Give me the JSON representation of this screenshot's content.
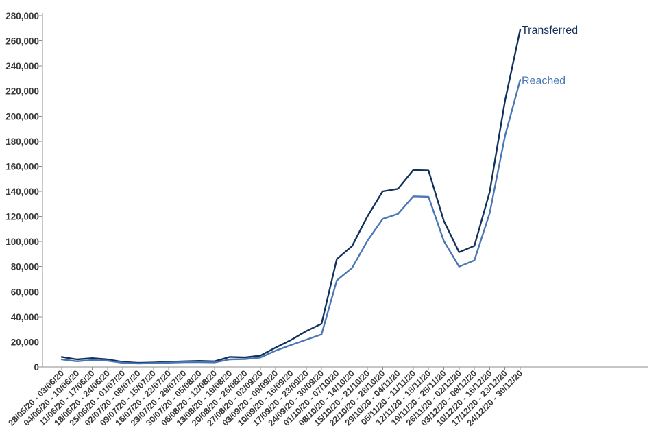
{
  "chart_data": {
    "type": "line",
    "title": "",
    "xlabel": "",
    "ylabel": "",
    "ylim": [
      0,
      280000
    ],
    "yticks": [
      0,
      20000,
      40000,
      60000,
      80000,
      100000,
      120000,
      140000,
      160000,
      180000,
      200000,
      220000,
      240000,
      260000,
      280000
    ],
    "ytick_labels": [
      "0",
      "20,000",
      "40,000",
      "60,000",
      "80,000",
      "100,000",
      "120,000",
      "140,000",
      "160,000",
      "180,000",
      "200,000",
      "220,000",
      "240,000",
      "260,000",
      "280,000"
    ],
    "grid": false,
    "legend": "end-of-line labels",
    "categories": [
      "28/05/20 - 03/06/20",
      "04/06/20 - 10/06/20",
      "11/06/20 - 17/06/20",
      "18/06/20 - 24/06/20",
      "25/06/20 - 01/07/20",
      "02/07/20 - 08/07/20",
      "09/07/20 - 15/07/20",
      "16/07/20 - 22/07/20",
      "23/07/20 - 29/07/20",
      "30/07/20 - 05/08/20",
      "06/08/20 - 12/08/20",
      "13/08/20 - 19/08/20",
      "20/08/20 - 26/08/20",
      "27/08/20 - 02/09/20",
      "03/09/20 - 09/09/20",
      "10/09/20 - 16/09/20",
      "17/09/20 - 23/09/20",
      "24/09/20 - 30/09/20",
      "01/10/20 - 07/10/20",
      "08/10/20 - 14/10/20",
      "15/10/20 - 21/10/20",
      "22/10/20 - 28/10/20",
      "29/10/20 - 04/11/20",
      "05/11/20 - 11/11/20",
      "12/11/20 - 18/11/20",
      "19/11/20 - 25/11/20",
      "26/11/20 - 02/12/20",
      "03/12/20 - 09/12/20",
      "10/12/20 - 16/12/20",
      "17/12/20 - 23/12/20",
      "24/12/20 - 30/12/20"
    ],
    "series": [
      {
        "name": "Transferred",
        "color": "#12315c",
        "values": [
          8000,
          6000,
          7000,
          6000,
          4000,
          3200,
          3500,
          4000,
          4500,
          4800,
          4500,
          8000,
          7600,
          9000,
          15500,
          21500,
          28600,
          34400,
          86000,
          96400,
          120000,
          140000,
          142000,
          157000,
          156600,
          116500,
          91500,
          96600,
          139500,
          212000,
          269000
        ]
      },
      {
        "name": "Reached",
        "color": "#4a77b4",
        "values": [
          6000,
          4500,
          5500,
          5000,
          3200,
          2700,
          3000,
          3400,
          3700,
          3800,
          3600,
          6000,
          6300,
          7500,
          13000,
          17500,
          21700,
          26000,
          69000,
          79000,
          100500,
          118000,
          122000,
          136000,
          135700,
          100500,
          80000,
          85000,
          122600,
          184000,
          229000
        ]
      }
    ]
  }
}
